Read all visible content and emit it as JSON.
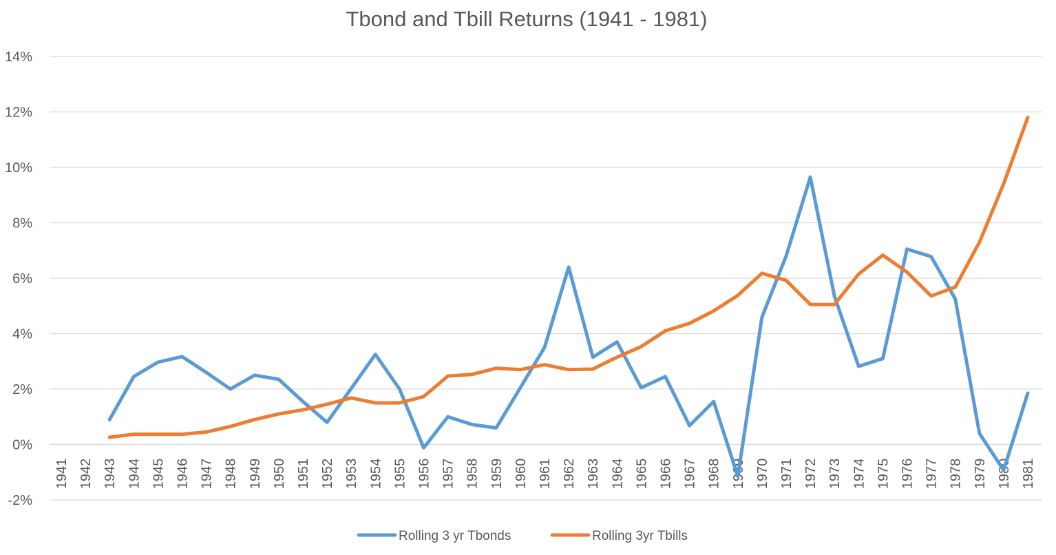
{
  "chart_data": {
    "type": "line",
    "title": "Tbond and Tbill Returns (1941 - 1981)",
    "xlabel": "",
    "ylabel": "",
    "ylim": [
      -2,
      14
    ],
    "y_ticks": [
      -2,
      0,
      2,
      4,
      6,
      8,
      10,
      12,
      14
    ],
    "y_tick_labels": [
      "-2%",
      "0%",
      "2%",
      "4%",
      "6%",
      "8%",
      "10%",
      "12%",
      "14%"
    ],
    "grid": true,
    "legend_position": "bottom",
    "categories": [
      "1941",
      "1942",
      "1943",
      "1944",
      "1945",
      "1946",
      "1947",
      "1948",
      "1949",
      "1950",
      "1951",
      "1952",
      "1953",
      "1954",
      "1955",
      "1956",
      "1957",
      "1958",
      "1959",
      "1960",
      "1961",
      "1962",
      "1963",
      "1964",
      "1965",
      "1966",
      "1967",
      "1968",
      "1969",
      "1970",
      "1971",
      "1972",
      "1973",
      "1974",
      "1975",
      "1976",
      "1977",
      "1978",
      "1979",
      "1980",
      "1981"
    ],
    "series": [
      {
        "name": "Rolling 3 yr Tbonds",
        "color": "#5b9bd5",
        "values": [
          null,
          null,
          0.9,
          2.45,
          2.97,
          3.17,
          2.6,
          2.0,
          2.5,
          2.35,
          1.55,
          0.8,
          2.02,
          3.25,
          2.0,
          -0.12,
          1.0,
          0.72,
          0.6,
          2.05,
          3.5,
          6.4,
          3.15,
          3.7,
          2.05,
          2.45,
          0.68,
          1.55,
          -1.15,
          4.6,
          6.8,
          9.65,
          5.35,
          2.82,
          3.1,
          7.05,
          6.78,
          5.25,
          0.4,
          -0.93,
          1.85
        ]
      },
      {
        "name": "Rolling 3yr Tbills",
        "color": "#ed7d31",
        "values": [
          null,
          null,
          0.26,
          0.37,
          0.37,
          0.37,
          0.45,
          0.65,
          0.9,
          1.1,
          1.25,
          1.45,
          1.68,
          1.5,
          1.5,
          1.73,
          2.47,
          2.53,
          2.75,
          2.7,
          2.88,
          2.7,
          2.72,
          3.15,
          3.53,
          4.1,
          4.37,
          4.82,
          5.38,
          6.18,
          5.92,
          5.05,
          5.05,
          6.15,
          6.83,
          6.22,
          5.36,
          5.68,
          7.3,
          9.4,
          11.8
        ]
      }
    ]
  }
}
